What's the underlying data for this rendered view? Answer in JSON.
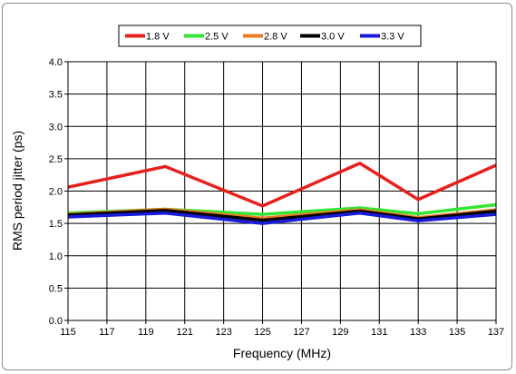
{
  "chart_data": {
    "type": "line",
    "title": "",
    "xlabel": "Frequency (MHz)",
    "ylabel": "RMS period jitter (ps)",
    "xlim": [
      115,
      137
    ],
    "ylim": [
      0.0,
      4.0
    ],
    "xticks": [
      "115",
      "117",
      "119",
      "121",
      "123",
      "125",
      "127",
      "129",
      "131",
      "133",
      "135",
      "137"
    ],
    "yticks": [
      "0.0",
      "0.5",
      "1.0",
      "1.5",
      "2.0",
      "2.5",
      "3.0",
      "3.5",
      "4.0"
    ],
    "grid": true,
    "legend_position": "top",
    "x": [
      115,
      120,
      125,
      130,
      133,
      137
    ],
    "series": [
      {
        "name": "1.8 V",
        "color": "#e8201c",
        "values": [
          2.06,
          2.38,
          1.77,
          2.43,
          1.87,
          2.4
        ]
      },
      {
        "name": "2.5 V",
        "color": "#33e633",
        "values": [
          1.66,
          1.72,
          1.64,
          1.74,
          1.65,
          1.79
        ]
      },
      {
        "name": "2.8 V",
        "color": "#f07820",
        "values": [
          1.64,
          1.72,
          1.58,
          1.71,
          1.59,
          1.71
        ]
      },
      {
        "name": "3.0 V",
        "color": "#000000",
        "values": [
          1.63,
          1.7,
          1.55,
          1.69,
          1.57,
          1.69
        ]
      },
      {
        "name": "3.3 V",
        "color": "#1a1adb",
        "values": [
          1.6,
          1.66,
          1.5,
          1.66,
          1.54,
          1.64
        ]
      }
    ]
  }
}
